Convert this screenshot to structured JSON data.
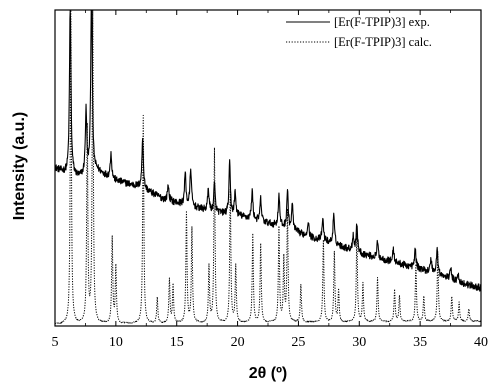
{
  "chart_data": {
    "type": "line",
    "xlabel": "2θ (º)",
    "ylabel": "Intensity (a.u.)",
    "xlim": [
      5,
      40
    ],
    "ylim": [
      0,
      100
    ],
    "x_ticks": [
      "5",
      "10",
      "15",
      "20",
      "25",
      "30",
      "35",
      "40"
    ],
    "y_tick_labels": "none",
    "grid": false,
    "legend": "top-right",
    "series": [
      {
        "name": "[Er(F-TPIP)3] exp.",
        "style": "solid",
        "color": "#000000",
        "baseline": [
          [
            5.0,
            50
          ],
          [
            6.0,
            48
          ],
          [
            7.0,
            47
          ],
          [
            8.5,
            49
          ],
          [
            10,
            46
          ],
          [
            12,
            44
          ],
          [
            14,
            40
          ],
          [
            16,
            38
          ],
          [
            18,
            36
          ],
          [
            20,
            35
          ],
          [
            22,
            33
          ],
          [
            24,
            31
          ],
          [
            26,
            28
          ],
          [
            28,
            26
          ],
          [
            30,
            23
          ],
          [
            32,
            21
          ],
          [
            34,
            19
          ],
          [
            36,
            17
          ],
          [
            38,
            14
          ],
          [
            40,
            12
          ]
        ],
        "peaks": [
          [
            6.25,
            55
          ],
          [
            7.55,
            20
          ],
          [
            8.0,
            62
          ],
          [
            9.6,
            8
          ],
          [
            12.2,
            16
          ],
          [
            14.3,
            5
          ],
          [
            15.7,
            10
          ],
          [
            16.15,
            12
          ],
          [
            17.6,
            7
          ],
          [
            18.1,
            9
          ],
          [
            19.35,
            16
          ],
          [
            19.8,
            7
          ],
          [
            21.2,
            9
          ],
          [
            21.9,
            7
          ],
          [
            23.4,
            10
          ],
          [
            24.1,
            12
          ],
          [
            24.5,
            8
          ],
          [
            25.8,
            5
          ],
          [
            27.0,
            7
          ],
          [
            27.9,
            9
          ],
          [
            29.5,
            5
          ],
          [
            29.8,
            9
          ],
          [
            31.5,
            5
          ],
          [
            32.8,
            4
          ],
          [
            34.6,
            6
          ],
          [
            35.9,
            4
          ],
          [
            36.4,
            8
          ],
          [
            37.5,
            4
          ],
          [
            38.1,
            3
          ]
        ]
      },
      {
        "name": "[Er(F-TPIP)3] calc.",
        "style": "dotted",
        "color": "#000000",
        "baseline": [
          [
            5.0,
            0.5
          ],
          [
            40,
            1.5
          ]
        ],
        "peaks": [
          [
            6.3,
            100
          ],
          [
            7.65,
            62
          ],
          [
            8.1,
            100
          ],
          [
            9.7,
            27
          ],
          [
            10.0,
            18
          ],
          [
            12.25,
            66
          ],
          [
            13.4,
            8
          ],
          [
            14.4,
            14
          ],
          [
            14.7,
            12
          ],
          [
            15.8,
            35
          ],
          [
            16.25,
            30
          ],
          [
            17.65,
            18
          ],
          [
            18.1,
            55
          ],
          [
            19.4,
            42
          ],
          [
            19.85,
            18
          ],
          [
            21.25,
            28
          ],
          [
            21.9,
            25
          ],
          [
            23.4,
            30
          ],
          [
            23.8,
            20
          ],
          [
            24.1,
            35
          ],
          [
            25.2,
            12
          ],
          [
            27.05,
            26
          ],
          [
            27.95,
            22
          ],
          [
            28.3,
            10
          ],
          [
            29.8,
            28
          ],
          [
            30.3,
            12
          ],
          [
            31.5,
            14
          ],
          [
            32.9,
            10
          ],
          [
            33.3,
            8
          ],
          [
            34.65,
            18
          ],
          [
            35.3,
            8
          ],
          [
            36.45,
            22
          ],
          [
            37.6,
            8
          ],
          [
            38.2,
            6
          ],
          [
            39.0,
            4
          ]
        ]
      }
    ]
  }
}
